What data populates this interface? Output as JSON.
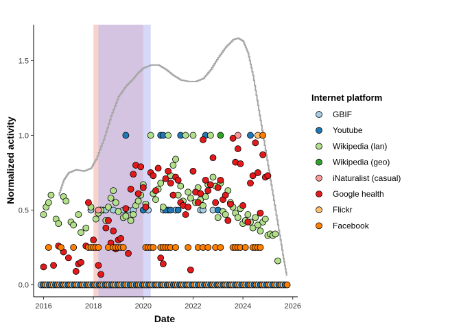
{
  "chart_data": {
    "type": "scatter",
    "xlabel": "Date",
    "ylabel": "Normalized activity",
    "xlim": [
      2015.6,
      2026.2
    ],
    "ylim": [
      -0.08,
      1.74
    ],
    "x_ticks": [
      "2016",
      "2018",
      "2020",
      "2022",
      "2024",
      "2026"
    ],
    "y_ticks": [
      "0.0",
      "0.5",
      "1.0",
      "1.5"
    ],
    "grid": false,
    "legend": {
      "title": "Internet platform",
      "position": "right"
    },
    "shaded_periods": [
      {
        "start": 2018.0,
        "end": 2020.0,
        "color": "#f4b6ae",
        "opacity": 0.6
      },
      {
        "start": 2018.2,
        "end": 2020.3,
        "color": "#b7b8f0",
        "opacity": 0.55
      }
    ],
    "trend_line": {
      "color": "#a6a6a6",
      "points": [
        [
          2016.6,
          0.6
        ],
        [
          2016.8,
          0.7
        ],
        [
          2017.0,
          0.75
        ],
        [
          2017.3,
          0.77
        ],
        [
          2017.6,
          0.76
        ],
        [
          2017.9,
          0.78
        ],
        [
          2018.1,
          0.84
        ],
        [
          2018.4,
          0.97
        ],
        [
          2018.7,
          1.13
        ],
        [
          2019.0,
          1.26
        ],
        [
          2019.3,
          1.33
        ],
        [
          2019.6,
          1.38
        ],
        [
          2019.8,
          1.42
        ],
        [
          2020.0,
          1.45
        ],
        [
          2020.3,
          1.47
        ],
        [
          2020.6,
          1.47
        ],
        [
          2020.9,
          1.44
        ],
        [
          2021.2,
          1.4
        ],
        [
          2021.5,
          1.37
        ],
        [
          2021.8,
          1.36
        ],
        [
          2022.1,
          1.36
        ],
        [
          2022.4,
          1.38
        ],
        [
          2022.7,
          1.44
        ],
        [
          2023.0,
          1.52
        ],
        [
          2023.3,
          1.59
        ],
        [
          2023.6,
          1.64
        ],
        [
          2023.8,
          1.65
        ],
        [
          2024.0,
          1.63
        ],
        [
          2024.2,
          1.55
        ],
        [
          2024.4,
          1.4
        ],
        [
          2024.6,
          1.2
        ],
        [
          2024.8,
          1.0
        ],
        [
          2025.0,
          0.8
        ],
        [
          2025.2,
          0.6
        ],
        [
          2025.4,
          0.4
        ],
        [
          2025.6,
          0.2
        ],
        [
          2025.75,
          0.06
        ]
      ]
    },
    "baseline": {
      "start": 2015.9,
      "end": 2025.8,
      "interval": 0.083,
      "value": 0,
      "series": [
        "GBIF",
        "Youtube",
        "Facebook"
      ]
    },
    "series": [
      {
        "name": "GBIF",
        "color": "#a6cee3",
        "points": [
          [
            2017.9,
            0.5
          ],
          [
            2018.3,
            0.5
          ],
          [
            2018.4,
            0.5
          ],
          [
            2018.5,
            0.5
          ],
          [
            2018.8,
            0.5
          ],
          [
            2019.2,
            0.5
          ],
          [
            2019.4,
            0.5
          ],
          [
            2019.6,
            0.5
          ],
          [
            2020.2,
            0.5
          ],
          [
            2020.8,
            0.5
          ],
          [
            2021.0,
            0.5
          ],
          [
            2021.3,
            0.5
          ],
          [
            2022.3,
            0.5
          ],
          [
            2022.4,
            0.5
          ],
          [
            2022.8,
            0.5
          ]
        ]
      },
      {
        "name": "Youtube",
        "color": "#1f78b4",
        "points": [
          [
            2019.3,
            1.0
          ],
          [
            2020.7,
            1.0
          ],
          [
            2020.8,
            1.0
          ],
          [
            2021.5,
            1.0
          ],
          [
            2022.5,
            1.0
          ],
          [
            2024.3,
            1.0
          ],
          [
            2020.0,
            0.5
          ],
          [
            2020.9,
            0.5
          ],
          [
            2021.1,
            0.5
          ],
          [
            2021.4,
            0.5
          ],
          [
            2023.0,
            0.5
          ]
        ]
      },
      {
        "name": "Wikipedia (lan)",
        "color": "#b2df8a",
        "points": [
          [
            2016.0,
            0.47
          ],
          [
            2016.1,
            0.52
          ],
          [
            2016.2,
            0.55
          ],
          [
            2016.3,
            0.6
          ],
          [
            2016.5,
            0.44
          ],
          [
            2016.6,
            0.41
          ],
          [
            2016.8,
            0.59
          ],
          [
            2016.9,
            0.56
          ],
          [
            2017.1,
            0.42
          ],
          [
            2017.2,
            0.4
          ],
          [
            2017.4,
            0.47
          ],
          [
            2017.5,
            0.35
          ],
          [
            2017.7,
            0.38
          ],
          [
            2017.9,
            0.52
          ],
          [
            2018.1,
            0.44
          ],
          [
            2018.2,
            0.48
          ],
          [
            2018.3,
            0.5
          ],
          [
            2018.5,
            0.43
          ],
          [
            2018.6,
            0.52
          ],
          [
            2018.7,
            0.58
          ],
          [
            2018.8,
            0.63
          ],
          [
            2018.9,
            0.55
          ],
          [
            2019.0,
            0.49
          ],
          [
            2019.2,
            0.45
          ],
          [
            2019.3,
            0.46
          ],
          [
            2019.5,
            0.43
          ],
          [
            2019.6,
            0.47
          ],
          [
            2019.7,
            0.53
          ],
          [
            2019.8,
            0.56
          ],
          [
            2019.9,
            0.6
          ],
          [
            2020.0,
            0.67
          ],
          [
            2020.1,
            0.54
          ],
          [
            2020.3,
            1.0
          ],
          [
            2020.4,
            0.61
          ],
          [
            2020.5,
            0.57
          ],
          [
            2020.6,
            0.64
          ],
          [
            2020.7,
            0.68
          ],
          [
            2020.8,
            0.52
          ],
          [
            2021.0,
            1.0
          ],
          [
            2021.1,
            0.73
          ],
          [
            2021.2,
            0.8
          ],
          [
            2021.3,
            0.84
          ],
          [
            2021.4,
            0.6
          ],
          [
            2021.5,
            0.66
          ],
          [
            2021.6,
            0.56
          ],
          [
            2021.7,
            1.0
          ],
          [
            2021.8,
            0.62
          ],
          [
            2021.9,
            0.58
          ],
          [
            2022.0,
            1.0
          ],
          [
            2022.1,
            0.55
          ],
          [
            2022.2,
            0.65
          ],
          [
            2022.3,
            0.57
          ],
          [
            2022.4,
            0.53
          ],
          [
            2022.5,
            0.59
          ],
          [
            2022.6,
            0.67
          ],
          [
            2022.7,
            1.0
          ],
          [
            2022.8,
            0.72
          ],
          [
            2022.9,
            0.66
          ],
          [
            2023.0,
            0.45
          ],
          [
            2023.1,
            0.68
          ],
          [
            2023.2,
            0.49
          ],
          [
            2023.3,
            0.47
          ],
          [
            2023.4,
            0.63
          ],
          [
            2023.5,
            0.55
          ],
          [
            2023.6,
            0.52
          ],
          [
            2023.7,
            0.48
          ],
          [
            2023.8,
            0.45
          ],
          [
            2023.9,
            0.51
          ],
          [
            2024.0,
            0.41
          ],
          [
            2024.1,
            0.43
          ],
          [
            2024.2,
            0.47
          ],
          [
            2024.3,
            0.42
          ],
          [
            2024.4,
            0.38
          ],
          [
            2024.5,
            0.45
          ],
          [
            2024.6,
            0.4
          ],
          [
            2024.7,
            0.36
          ],
          [
            2024.8,
            0.42
          ],
          [
            2024.9,
            0.44
          ],
          [
            2025.0,
            0.33
          ],
          [
            2025.1,
            0.34
          ],
          [
            2025.2,
            0.33
          ],
          [
            2025.3,
            0.34
          ],
          [
            2025.4,
            0.16
          ]
        ]
      },
      {
        "name": "Wikipedia (geo)",
        "color": "#33a02c",
        "points": [
          [
            2023.1,
            1.0
          ]
        ]
      },
      {
        "name": "iNaturalist (casual)",
        "color": "#fb9a99",
        "points": [
          [
            2018.2,
            0.5
          ],
          [
            2023.8,
            1.0
          ]
        ]
      },
      {
        "name": "Google health",
        "color": "#e31a1c",
        "points": [
          [
            2016.0,
            0.12
          ],
          [
            2016.4,
            0.13
          ],
          [
            2016.6,
            0.26
          ],
          [
            2016.8,
            0.22
          ],
          [
            2017.0,
            0.18
          ],
          [
            2017.3,
            0.09
          ],
          [
            2017.4,
            0.14
          ],
          [
            2017.5,
            0.15
          ],
          [
            2017.7,
            0.26
          ],
          [
            2017.8,
            0.55
          ],
          [
            2018.0,
            0.3
          ],
          [
            2018.2,
            0.13
          ],
          [
            2018.3,
            0.07
          ],
          [
            2018.5,
            0.38
          ],
          [
            2018.6,
            0.43
          ],
          [
            2018.7,
            0.28
          ],
          [
            2018.8,
            0.36
          ],
          [
            2018.9,
            0.24
          ],
          [
            2019.0,
            0.3
          ],
          [
            2019.1,
            0.31
          ],
          [
            2019.3,
            0.51
          ],
          [
            2019.4,
            0.21
          ],
          [
            2019.5,
            0.64
          ],
          [
            2019.6,
            0.74
          ],
          [
            2019.7,
            0.8
          ],
          [
            2019.8,
            0.61
          ],
          [
            2019.9,
            0.79
          ],
          [
            2020.0,
            0.65
          ],
          [
            2020.1,
            0.52
          ],
          [
            2020.3,
            0.75
          ],
          [
            2020.4,
            0.73
          ],
          [
            2020.5,
            0.63
          ],
          [
            2020.6,
            0.78
          ],
          [
            2020.7,
            0.18
          ],
          [
            2020.8,
            0.14
          ],
          [
            2020.9,
            0.71
          ],
          [
            2021.0,
            0.76
          ],
          [
            2021.1,
            0.68
          ],
          [
            2021.2,
            0.6
          ],
          [
            2021.3,
            0.72
          ],
          [
            2021.4,
            0.7
          ],
          [
            2021.5,
            0.55
          ],
          [
            2021.6,
            0.53
          ],
          [
            2021.7,
            0.47
          ],
          [
            2021.8,
            0.52
          ],
          [
            2021.9,
            0.1
          ],
          [
            2022.0,
            0.76
          ],
          [
            2022.1,
            0.62
          ],
          [
            2022.2,
            0.55
          ],
          [
            2022.3,
            0.61
          ],
          [
            2022.4,
            0.97
          ],
          [
            2022.5,
            0.7
          ],
          [
            2022.6,
            0.63
          ],
          [
            2022.7,
            0.67
          ],
          [
            2022.8,
            0.85
          ],
          [
            2022.9,
            0.55
          ],
          [
            2023.0,
            0.65
          ],
          [
            2023.1,
            0.7
          ],
          [
            2023.2,
            0.57
          ],
          [
            2023.3,
            0.6
          ],
          [
            2023.4,
            0.43
          ],
          [
            2023.5,
            0.54
          ],
          [
            2023.6,
            0.98
          ],
          [
            2023.7,
            0.82
          ],
          [
            2023.8,
            0.91
          ],
          [
            2023.9,
            0.81
          ],
          [
            2024.0,
            0.53
          ],
          [
            2024.2,
            0.42
          ],
          [
            2024.3,
            0.68
          ],
          [
            2024.4,
            0.73
          ],
          [
            2024.5,
            0.95
          ],
          [
            2024.6,
            0.75
          ],
          [
            2024.7,
            0.48
          ],
          [
            2024.8,
            0.87
          ],
          [
            2024.9,
            0.72
          ],
          [
            2025.0,
            0.73
          ]
        ]
      },
      {
        "name": "Flickr",
        "color": "#fdbf6f",
        "points": [
          [
            2024.6,
            1.0
          ]
        ]
      },
      {
        "name": "Facebook",
        "color": "#ff7f00",
        "points": [
          [
            2016.2,
            0.25
          ],
          [
            2016.7,
            0.25
          ],
          [
            2017.2,
            0.25
          ],
          [
            2017.8,
            0.25
          ],
          [
            2017.9,
            0.25
          ],
          [
            2018.0,
            0.25
          ],
          [
            2018.1,
            0.25
          ],
          [
            2018.2,
            0.25
          ],
          [
            2018.6,
            0.25
          ],
          [
            2018.8,
            0.25
          ],
          [
            2018.9,
            0.25
          ],
          [
            2019.0,
            0.25
          ],
          [
            2019.1,
            0.25
          ],
          [
            2019.2,
            0.25
          ],
          [
            2020.1,
            0.25
          ],
          [
            2020.2,
            0.25
          ],
          [
            2020.3,
            0.25
          ],
          [
            2020.4,
            0.25
          ],
          [
            2020.7,
            0.25
          ],
          [
            2020.8,
            0.25
          ],
          [
            2020.9,
            0.25
          ],
          [
            2021.0,
            0.25
          ],
          [
            2021.1,
            0.25
          ],
          [
            2021.3,
            0.25
          ],
          [
            2021.8,
            0.25
          ],
          [
            2022.2,
            0.25
          ],
          [
            2022.4,
            0.25
          ],
          [
            2022.6,
            0.25
          ],
          [
            2022.9,
            0.25
          ],
          [
            2023.1,
            0.25
          ],
          [
            2023.6,
            0.25
          ],
          [
            2023.7,
            0.25
          ],
          [
            2023.8,
            0.25
          ],
          [
            2023.9,
            0.25
          ],
          [
            2024.1,
            0.25
          ],
          [
            2024.4,
            0.25
          ],
          [
            2024.5,
            0.25
          ],
          [
            2024.6,
            0.25
          ],
          [
            2024.7,
            0.25
          ],
          [
            2024.8,
            1.0
          ]
        ]
      }
    ]
  }
}
